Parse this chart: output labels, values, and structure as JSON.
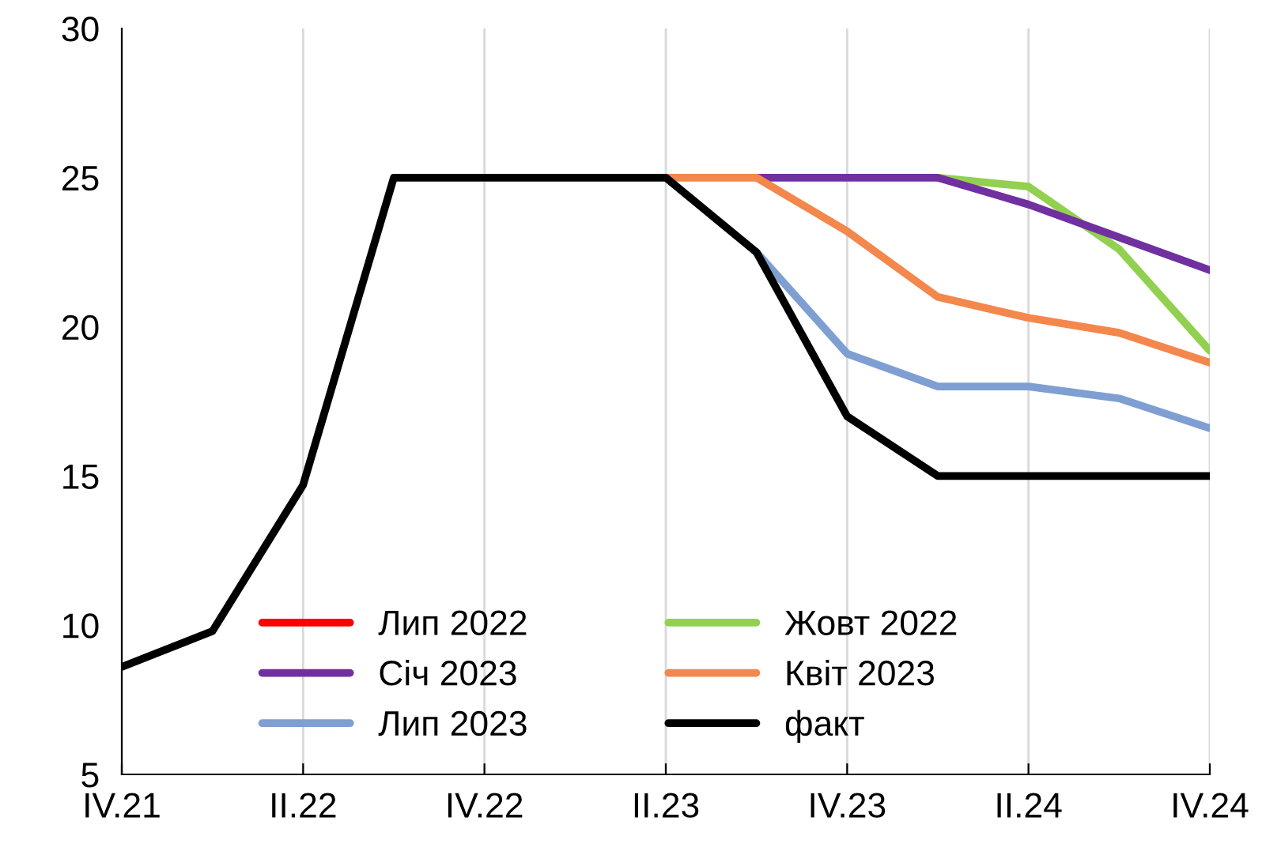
{
  "chart_data": {
    "type": "line",
    "categories": [
      "IV.21",
      null,
      "II.22",
      null,
      "IV.22",
      null,
      "II.23",
      null,
      "IV.23",
      null,
      "II.24",
      null,
      "IV.24"
    ],
    "ylim": [
      5,
      30
    ],
    "yticks": [
      5,
      10,
      15,
      20,
      25,
      30
    ],
    "grid": "x",
    "legend": "bottom left",
    "series": [
      {
        "name": "Лип 2022",
        "color": "#ff0000",
        "values": [
          null,
          null,
          null,
          null,
          null,
          null,
          null,
          null,
          null,
          null,
          null,
          null,
          null
        ]
      },
      {
        "name": "Жовт 2022",
        "color": "#92d050",
        "values": [
          null,
          null,
          null,
          null,
          null,
          null,
          null,
          null,
          null,
          25,
          24.7,
          22.6,
          19.2
        ]
      },
      {
        "name": "Січ 2023",
        "color": "#7030a0",
        "values": [
          null,
          null,
          null,
          null,
          null,
          null,
          null,
          25,
          25,
          25,
          24.1,
          23.0,
          21.9
        ]
      },
      {
        "name": "Квіт 2023",
        "color": "#f4874b",
        "values": [
          null,
          null,
          null,
          null,
          null,
          null,
          25,
          25,
          23.2,
          21.0,
          20.3,
          19.8,
          18.8
        ]
      },
      {
        "name": "Лип 2023",
        "color": "#7f9fd3",
        "values": [
          null,
          null,
          null,
          null,
          null,
          null,
          null,
          22.5,
          19.1,
          18.0,
          18.0,
          17.6,
          16.6
        ]
      },
      {
        "name": "факт",
        "color": "#000000",
        "values": [
          8.6,
          9.8,
          14.7,
          25,
          25,
          25,
          25,
          22.5,
          17.0,
          15,
          15,
          15,
          15
        ]
      }
    ]
  }
}
